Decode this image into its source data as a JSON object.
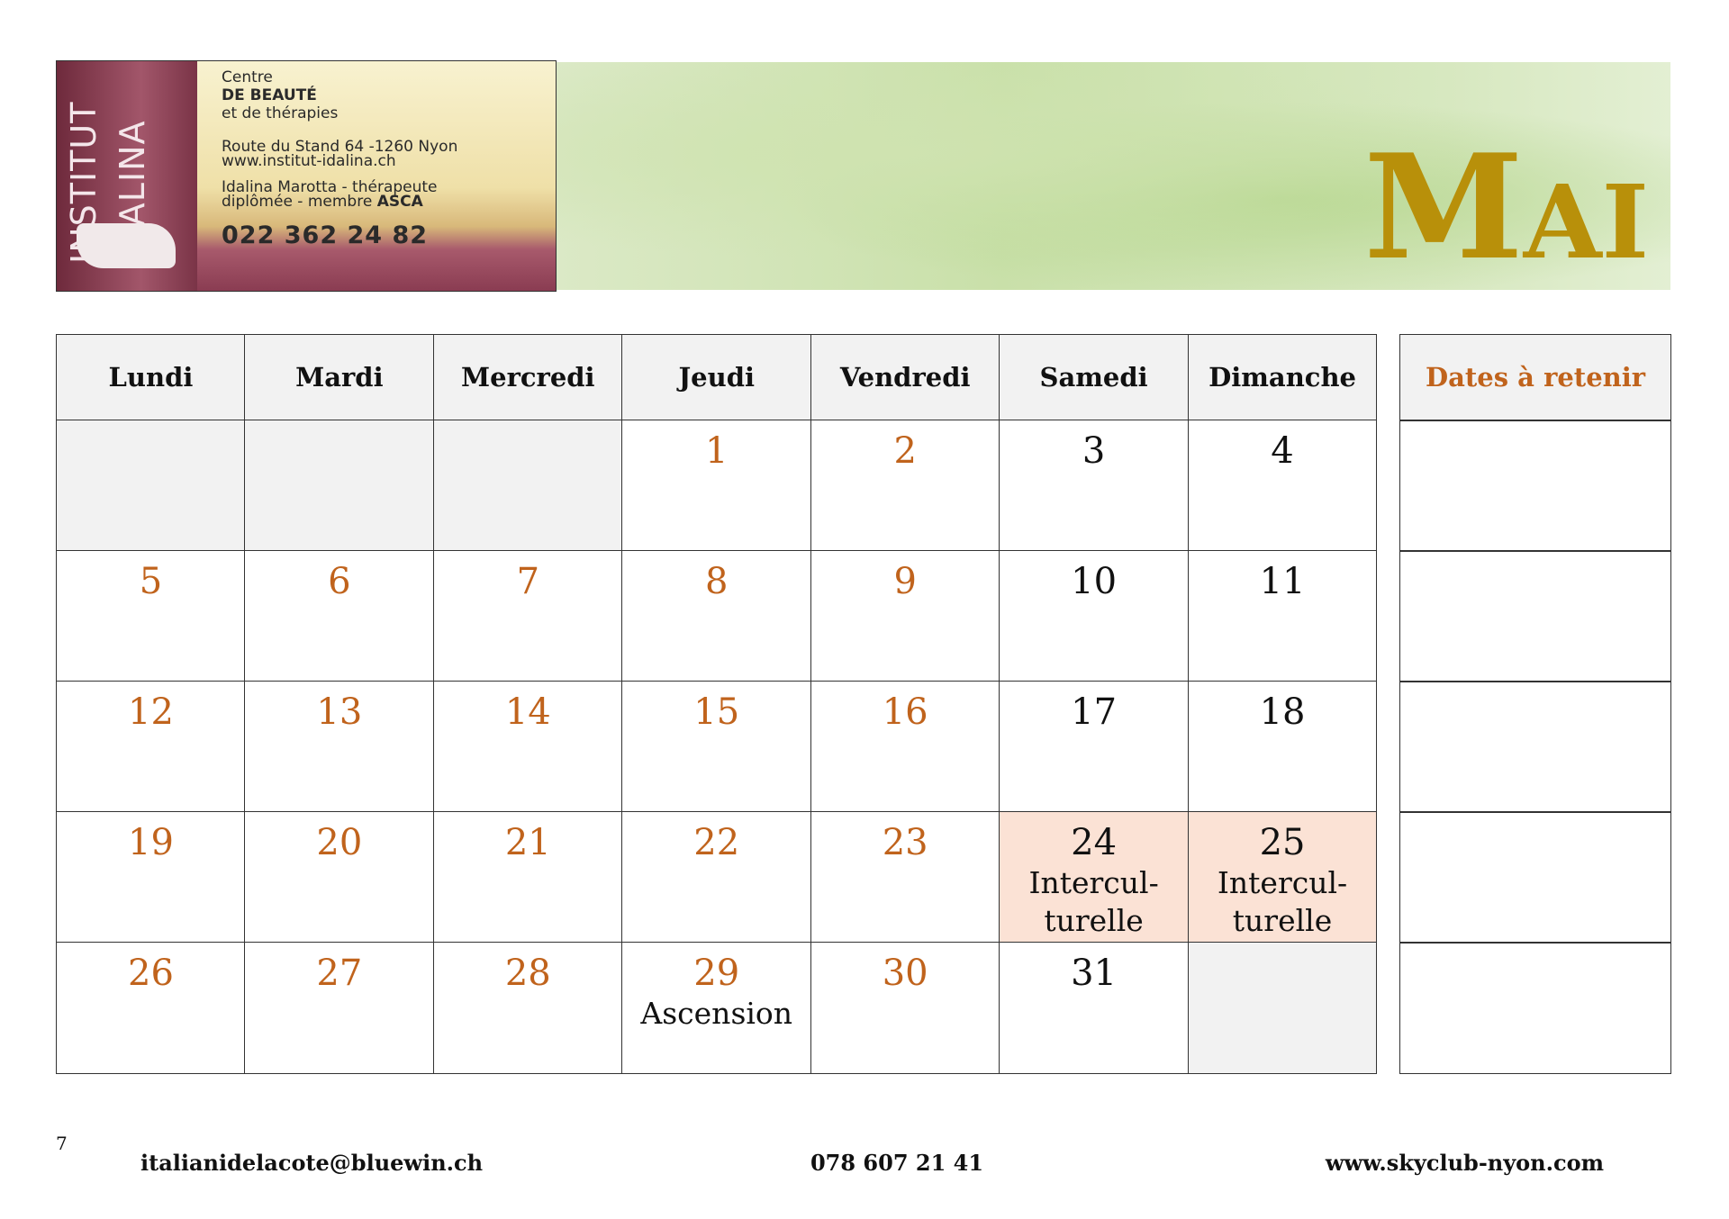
{
  "ad": {
    "logo": [
      "INSTITUT",
      "IDALINA"
    ],
    "lines": [
      "Centre",
      "DE BEAUTÉ",
      "et de thérapies",
      "Route du Stand 64 -1260 Nyon",
      "www.institut-idalina.ch",
      "Idalina Marotta - thérapeute"
    ],
    "member": "diplômée - membre",
    "member_org": "ASCA",
    "phone": "022 362 24 82"
  },
  "title": "Mai",
  "weekdays": [
    "Lundi",
    "Mardi",
    "Mercredi",
    "Jeudi",
    "Vendredi",
    "Samedi",
    "Dimanche"
  ],
  "dates_header": "Dates à retenir",
  "weeks": [
    [
      null,
      null,
      null,
      {
        "day": 1
      },
      {
        "day": 2
      },
      {
        "day": 3
      },
      {
        "day": 4
      }
    ],
    [
      {
        "day": 5
      },
      {
        "day": 6
      },
      {
        "day": 7
      },
      {
        "day": 8
      },
      {
        "day": 9
      },
      {
        "day": 10
      },
      {
        "day": 11
      }
    ],
    [
      {
        "day": 12
      },
      {
        "day": 13
      },
      {
        "day": 14
      },
      {
        "day": 15
      },
      {
        "day": 16
      },
      {
        "day": 17
      },
      {
        "day": 18
      }
    ],
    [
      {
        "day": 19
      },
      {
        "day": 20
      },
      {
        "day": 21
      },
      {
        "day": 22
      },
      {
        "day": 23
      },
      {
        "day": 24,
        "note": [
          "Intercul-",
          "turelle"
        ],
        "highlight": true
      },
      {
        "day": 25,
        "note": [
          "Intercul-",
          "turelle"
        ],
        "highlight": true
      }
    ],
    [
      {
        "day": 26
      },
      {
        "day": 27
      },
      {
        "day": 28
      },
      {
        "day": 29,
        "note": [
          "Ascension"
        ]
      },
      {
        "day": 30
      },
      {
        "day": 31
      },
      null
    ]
  ],
  "footer": {
    "page": "7",
    "email": "italianidelacote@bluewin.ch",
    "phone": "078 607 21 41",
    "website": "www.skyclub-nyon.com"
  }
}
